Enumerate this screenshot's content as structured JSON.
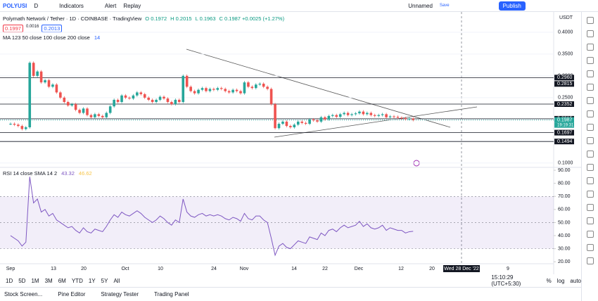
{
  "toolbar": {
    "symbol": "POLYUSI",
    "interval": "D",
    "indicators": "Indicators",
    "alert": "Alert",
    "replay": "Replay",
    "layout_name": "Unnamed",
    "save": "Save",
    "publish": "Publish"
  },
  "legend": {
    "title": "Polymath Network / Tether · 1D · COINBASE · TradingView",
    "open": "O 0.1972",
    "high": "H 0.2015",
    "low": "L 0.1963",
    "close": "C 0.1987 +0.0025 (+1.27%)",
    "sell": "0.1997",
    "spread": "0.0016",
    "buy": "0.2013",
    "ma": "MA 123 50 close 100 close 200 close",
    "ma_extra": "14"
  },
  "price_chart": {
    "type": "candlestick",
    "currency": "USDT",
    "ylim": [
      0.09,
      0.445
    ],
    "yticks": [
      {
        "value": 0.4,
        "label": "0.4000"
      },
      {
        "value": 0.35,
        "label": "0.3500"
      },
      {
        "value": 0.3,
        "label": "0.3000"
      },
      {
        "value": 0.25,
        "label": "0.2500"
      },
      {
        "value": 0.2,
        "label": "0.2000"
      },
      {
        "value": 0.15,
        "label": "0.1500"
      },
      {
        "value": 0.1,
        "label": "0.1000"
      }
    ],
    "close": [
      0.19,
      0.188,
      0.185,
      0.178,
      0.182,
      0.33,
      0.3,
      0.31,
      0.285,
      0.29,
      0.275,
      0.28,
      0.262,
      0.25,
      0.24,
      0.232,
      0.235,
      0.222,
      0.215,
      0.225,
      0.21,
      0.205,
      0.212,
      0.208,
      0.205,
      0.215,
      0.23,
      0.245,
      0.24,
      0.255,
      0.25,
      0.248,
      0.255,
      0.262,
      0.258,
      0.25,
      0.245,
      0.24,
      0.245,
      0.252,
      0.248,
      0.24,
      0.235,
      0.245,
      0.24,
      0.3,
      0.275,
      0.265,
      0.26,
      0.268,
      0.272,
      0.265,
      0.27,
      0.268,
      0.272,
      0.27,
      0.265,
      0.262,
      0.268,
      0.265,
      0.26,
      0.285,
      0.275,
      0.272,
      0.28,
      0.282,
      0.275,
      0.27,
      0.235,
      0.18,
      0.19,
      0.195,
      0.185,
      0.182,
      0.188,
      0.195,
      0.192,
      0.19,
      0.2,
      0.198,
      0.195,
      0.205,
      0.2,
      0.208,
      0.21,
      0.206,
      0.212,
      0.215,
      0.21,
      0.212,
      0.214,
      0.218,
      0.212,
      0.215,
      0.21,
      0.208,
      0.21,
      0.212,
      0.205,
      0.207,
      0.206,
      0.204,
      0.203,
      0.201,
      0.202,
      0.1987
    ],
    "levels": [
      {
        "value": 0.296,
        "label": "0.2960"
      },
      {
        "value": 0.2352,
        "label": "0.2352"
      },
      {
        "value": 0.2015,
        "label": "0.2015"
      },
      {
        "value": 0.1697,
        "label": "0.1697"
      },
      {
        "value": 0.1494,
        "label": "0.1494"
      }
    ],
    "tags": [
      {
        "value": 0.2815,
        "label": "0.2815"
      },
      {
        "value": 0.1987,
        "label": "0.1987"
      }
    ],
    "countdown": "19:19:31"
  },
  "rsi": {
    "type": "line",
    "label": "RSI 14 close SMA 14 2",
    "value": "43.32",
    "sma": "46.62",
    "ylim": [
      18.5,
      92.2
    ],
    "yticks": [
      {
        "value": 90,
        "label": "90.00"
      },
      {
        "value": 80,
        "label": "80.00"
      },
      {
        "value": 70,
        "label": "70.00"
      },
      {
        "value": 60,
        "label": "60.00"
      },
      {
        "value": 50,
        "label": "50.00"
      },
      {
        "value": 40,
        "label": "40.00"
      },
      {
        "value": 30,
        "label": "30.00"
      },
      {
        "value": 20,
        "label": "20.00"
      }
    ],
    "values": [
      40,
      38,
      36,
      32,
      35,
      85,
      65,
      68,
      58,
      60,
      55,
      57,
      52,
      50,
      48,
      46,
      47,
      44,
      42,
      46,
      43,
      42,
      45,
      44,
      43,
      47,
      52,
      56,
      54,
      58,
      56,
      55,
      57,
      59,
      57,
      54,
      52,
      50,
      52,
      55,
      53,
      50,
      48,
      52,
      50,
      68,
      58,
      55,
      54,
      56,
      57,
      55,
      56,
      55,
      56,
      55,
      53,
      52,
      54,
      53,
      51,
      57,
      53,
      52,
      55,
      55,
      52,
      50,
      38,
      25,
      32,
      34,
      31,
      30,
      33,
      36,
      35,
      34,
      39,
      38,
      37,
      42,
      40,
      44,
      45,
      43,
      46,
      48,
      46,
      47,
      48,
      51,
      47,
      49,
      46,
      45,
      46,
      48,
      44,
      46,
      45,
      44,
      44,
      42,
      43,
      43.32
    ]
  },
  "time_axis": [
    "Sep",
    "13",
    "20",
    "Oct",
    "10",
    "24",
    "Nov",
    "14",
    "22",
    "Dec",
    "12",
    "20",
    "Wed 28 Dec '22",
    "9"
  ],
  "range_bar": {
    "ranges": [
      "1D",
      "5D",
      "1M",
      "3M",
      "6M",
      "YTD",
      "1Y",
      "5Y",
      "All"
    ],
    "clock": "15:10:29 (UTC+5:30)",
    "percent": "%",
    "log": "log",
    "auto": "auto"
  },
  "bottom_tabs": [
    "Stock Screen...",
    "Pine Editor",
    "Strategy Tester",
    "Trading Panel"
  ]
}
